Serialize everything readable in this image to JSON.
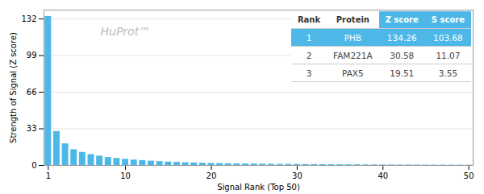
{
  "chart_data": {
    "type": "bar",
    "xlabel": "Signal Rank (Top 50)",
    "ylabel": "Strength of Signal (Z score)",
    "x": [
      1,
      2,
      3,
      4,
      5,
      6,
      7,
      8,
      9,
      10,
      11,
      12,
      13,
      14,
      15,
      16,
      17,
      18,
      19,
      20,
      21,
      22,
      23,
      24,
      25,
      26,
      27,
      28,
      29,
      30,
      31,
      32,
      33,
      34,
      35,
      36,
      37,
      38,
      39,
      40,
      41,
      42,
      43,
      44,
      45,
      46,
      47,
      48,
      49,
      50
    ],
    "values": [
      134.26,
      30.58,
      19.51,
      14.2,
      11.8,
      9.8,
      8.4,
      7.2,
      6.3,
      5.5,
      4.9,
      4.4,
      3.9,
      3.5,
      3.1,
      2.8,
      2.5,
      2.3,
      2.1,
      1.9,
      1.75,
      1.6,
      1.5,
      1.4,
      1.3,
      1.2,
      1.1,
      1.0,
      0.95,
      0.9,
      0.85,
      0.8,
      0.75,
      0.7,
      0.66,
      0.62,
      0.58,
      0.55,
      0.52,
      0.49,
      0.46,
      0.43,
      0.41,
      0.38,
      0.36,
      0.34,
      0.32,
      0.3,
      0.28,
      0.26
    ],
    "color": "#4db8e8",
    "xlim": [
      0.5,
      50.5
    ],
    "ylim": [
      0,
      140
    ],
    "xticks": [
      1,
      10,
      20,
      30,
      40,
      50
    ],
    "yticks": [
      0,
      33,
      66,
      99,
      132
    ],
    "grid": true,
    "annotations": [
      {
        "text": "HuProt™"
      }
    ],
    "table": {
      "columns": [
        "Rank",
        "Protein",
        "Z score",
        "S score"
      ],
      "rows": [
        [
          "1",
          "PHB",
          "134.26",
          "103.68"
        ],
        [
          "2",
          "FAM221A",
          "30.58",
          "11.07"
        ],
        [
          "3",
          "PAX5",
          "19.51",
          "3.55"
        ]
      ]
    }
  }
}
